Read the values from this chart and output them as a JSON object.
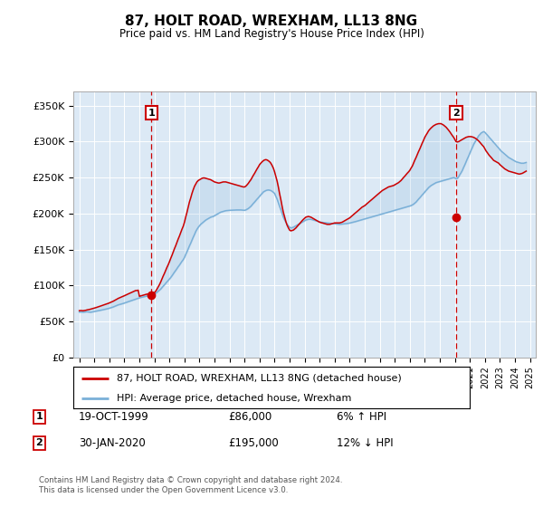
{
  "title": "87, HOLT ROAD, WREXHAM, LL13 8NG",
  "subtitle": "Price paid vs. HM Land Registry's House Price Index (HPI)",
  "ylabel_ticks": [
    "£0",
    "£50K",
    "£100K",
    "£150K",
    "£200K",
    "£250K",
    "£300K",
    "£350K"
  ],
  "ytick_values": [
    0,
    50000,
    100000,
    150000,
    200000,
    250000,
    300000,
    350000
  ],
  "ylim": [
    0,
    370000
  ],
  "xlim_start": 1994.6,
  "xlim_end": 2025.4,
  "background_color": "#dce9f5",
  "red_line_color": "#cc0000",
  "blue_line_color": "#7ab0d8",
  "marker1_x": 1999.8,
  "marker1_price": 86000,
  "marker2_x": 2020.08,
  "marker2_price": 195000,
  "legend_line1": "87, HOLT ROAD, WREXHAM, LL13 8NG (detached house)",
  "legend_line2": "HPI: Average price, detached house, Wrexham",
  "footer": "Contains HM Land Registry data © Crown copyright and database right 2024.\nThis data is licensed under the Open Government Licence v3.0.",
  "table_rows": [
    {
      "num": "1",
      "date": "19-OCT-1999",
      "price": "£86,000",
      "hpi": "6% ↑ HPI"
    },
    {
      "num": "2",
      "date": "30-JAN-2020",
      "price": "£195,000",
      "hpi": "12% ↓ HPI"
    }
  ],
  "hpi_data_x": [
    1995.0,
    1995.08,
    1995.17,
    1995.25,
    1995.33,
    1995.42,
    1995.5,
    1995.58,
    1995.67,
    1995.75,
    1995.83,
    1995.92,
    1996.0,
    1996.08,
    1996.17,
    1996.25,
    1996.33,
    1996.42,
    1996.5,
    1996.58,
    1996.67,
    1996.75,
    1996.83,
    1996.92,
    1997.0,
    1997.08,
    1997.17,
    1997.25,
    1997.33,
    1997.42,
    1997.5,
    1997.58,
    1997.67,
    1997.75,
    1997.83,
    1997.92,
    1998.0,
    1998.08,
    1998.17,
    1998.25,
    1998.33,
    1998.42,
    1998.5,
    1998.58,
    1998.67,
    1998.75,
    1998.83,
    1998.92,
    1999.0,
    1999.08,
    1999.17,
    1999.25,
    1999.33,
    1999.42,
    1999.5,
    1999.58,
    1999.67,
    1999.75,
    1999.83,
    1999.92,
    2000.0,
    2000.08,
    2000.17,
    2000.25,
    2000.33,
    2000.42,
    2000.5,
    2000.58,
    2000.67,
    2000.75,
    2000.83,
    2000.92,
    2001.0,
    2001.08,
    2001.17,
    2001.25,
    2001.33,
    2001.42,
    2001.5,
    2001.58,
    2001.67,
    2001.75,
    2001.83,
    2001.92,
    2002.0,
    2002.08,
    2002.17,
    2002.25,
    2002.33,
    2002.42,
    2002.5,
    2002.58,
    2002.67,
    2002.75,
    2002.83,
    2002.92,
    2003.0,
    2003.08,
    2003.17,
    2003.25,
    2003.33,
    2003.42,
    2003.5,
    2003.58,
    2003.67,
    2003.75,
    2003.83,
    2003.92,
    2004.0,
    2004.08,
    2004.17,
    2004.25,
    2004.33,
    2004.42,
    2004.5,
    2004.58,
    2004.67,
    2004.75,
    2004.83,
    2004.92,
    2005.0,
    2005.08,
    2005.17,
    2005.25,
    2005.33,
    2005.42,
    2005.5,
    2005.58,
    2005.67,
    2005.75,
    2005.83,
    2005.92,
    2006.0,
    2006.08,
    2006.17,
    2006.25,
    2006.33,
    2006.42,
    2006.5,
    2006.58,
    2006.67,
    2006.75,
    2006.83,
    2006.92,
    2007.0,
    2007.08,
    2007.17,
    2007.25,
    2007.33,
    2007.42,
    2007.5,
    2007.58,
    2007.67,
    2007.75,
    2007.83,
    2007.92,
    2008.0,
    2008.08,
    2008.17,
    2008.25,
    2008.33,
    2008.42,
    2008.5,
    2008.58,
    2008.67,
    2008.75,
    2008.83,
    2008.92,
    2009.0,
    2009.08,
    2009.17,
    2009.25,
    2009.33,
    2009.42,
    2009.5,
    2009.58,
    2009.67,
    2009.75,
    2009.83,
    2009.92,
    2010.0,
    2010.08,
    2010.17,
    2010.25,
    2010.33,
    2010.42,
    2010.5,
    2010.58,
    2010.67,
    2010.75,
    2010.83,
    2010.92,
    2011.0,
    2011.08,
    2011.17,
    2011.25,
    2011.33,
    2011.42,
    2011.5,
    2011.58,
    2011.67,
    2011.75,
    2011.83,
    2011.92,
    2012.0,
    2012.08,
    2012.17,
    2012.25,
    2012.33,
    2012.42,
    2012.5,
    2012.58,
    2012.67,
    2012.75,
    2012.83,
    2012.92,
    2013.0,
    2013.08,
    2013.17,
    2013.25,
    2013.33,
    2013.42,
    2013.5,
    2013.58,
    2013.67,
    2013.75,
    2013.83,
    2013.92,
    2014.0,
    2014.08,
    2014.17,
    2014.25,
    2014.33,
    2014.42,
    2014.5,
    2014.58,
    2014.67,
    2014.75,
    2014.83,
    2014.92,
    2015.0,
    2015.08,
    2015.17,
    2015.25,
    2015.33,
    2015.42,
    2015.5,
    2015.58,
    2015.67,
    2015.75,
    2015.83,
    2015.92,
    2016.0,
    2016.08,
    2016.17,
    2016.25,
    2016.33,
    2016.42,
    2016.5,
    2016.58,
    2016.67,
    2016.75,
    2016.83,
    2016.92,
    2017.0,
    2017.08,
    2017.17,
    2017.25,
    2017.33,
    2017.42,
    2017.5,
    2017.58,
    2017.67,
    2017.75,
    2017.83,
    2017.92,
    2018.0,
    2018.08,
    2018.17,
    2018.25,
    2018.33,
    2018.42,
    2018.5,
    2018.58,
    2018.67,
    2018.75,
    2018.83,
    2018.92,
    2019.0,
    2019.08,
    2019.17,
    2019.25,
    2019.33,
    2019.42,
    2019.5,
    2019.58,
    2019.67,
    2019.75,
    2019.83,
    2019.92,
    2020.0,
    2020.08,
    2020.17,
    2020.25,
    2020.33,
    2020.42,
    2020.5,
    2020.58,
    2020.67,
    2020.75,
    2020.83,
    2020.92,
    2021.0,
    2021.08,
    2021.17,
    2021.25,
    2021.33,
    2021.42,
    2021.5,
    2021.58,
    2021.67,
    2021.75,
    2021.83,
    2021.92,
    2022.0,
    2022.08,
    2022.17,
    2022.25,
    2022.33,
    2022.42,
    2022.5,
    2022.58,
    2022.67,
    2022.75,
    2022.83,
    2022.92,
    2023.0,
    2023.08,
    2023.17,
    2023.25,
    2023.33,
    2023.42,
    2023.5,
    2023.58,
    2023.67,
    2023.75,
    2023.83,
    2023.92,
    2024.0,
    2024.08,
    2024.17,
    2024.25,
    2024.33,
    2024.42,
    2024.5,
    2024.58,
    2024.67,
    2024.75
  ],
  "hpi_data_y": [
    63000,
    63200,
    63100,
    62800,
    63000,
    63300,
    63500,
    63200,
    63000,
    62800,
    63100,
    63400,
    63800,
    64200,
    64500,
    64900,
    65200,
    65600,
    66000,
    66300,
    66700,
    67100,
    67500,
    67900,
    68400,
    68900,
    69500,
    70100,
    70800,
    71500,
    72200,
    73000,
    73500,
    74000,
    74500,
    75000,
    75600,
    76200,
    76800,
    77400,
    78000,
    78600,
    79200,
    79800,
    80400,
    81000,
    81600,
    82200,
    82800,
    83300,
    83700,
    84100,
    84500,
    84900,
    85300,
    85700,
    86100,
    86500,
    86900,
    87300,
    88000,
    89000,
    90500,
    92000,
    93500,
    95000,
    97000,
    99000,
    101000,
    103000,
    105000,
    107000,
    109000,
    111000,
    113500,
    116000,
    118500,
    121000,
    123500,
    126000,
    128500,
    131000,
    133500,
    136000,
    139000,
    143000,
    147000,
    151000,
    155000,
    159000,
    163000,
    167000,
    171000,
    175000,
    178000,
    181000,
    183000,
    185000,
    186500,
    188000,
    189500,
    191000,
    192000,
    193000,
    194000,
    195000,
    195500,
    196000,
    197000,
    198000,
    199000,
    200000,
    201000,
    202000,
    202500,
    203000,
    203500,
    204000,
    204200,
    204400,
    204500,
    204600,
    204700,
    204800,
    204900,
    205000,
    205000,
    205000,
    205000,
    205000,
    204800,
    204600,
    204500,
    205000,
    206000,
    207000,
    208500,
    210000,
    212000,
    214000,
    216000,
    218000,
    220000,
    222000,
    224000,
    226000,
    228000,
    230000,
    231000,
    232000,
    232500,
    232800,
    232500,
    232000,
    231000,
    229500,
    228000,
    224000,
    220000,
    215000,
    210000,
    205000,
    200000,
    195000,
    191000,
    188000,
    185000,
    183000,
    181000,
    180000,
    180500,
    181000,
    182000,
    183000,
    184000,
    185000,
    186000,
    187000,
    188000,
    189000,
    190000,
    191000,
    191500,
    192000,
    192000,
    192000,
    191500,
    191000,
    190500,
    190000,
    189500,
    189000,
    188500,
    188000,
    187800,
    187600,
    187400,
    187200,
    187000,
    186800,
    186600,
    186400,
    186200,
    186000,
    185800,
    185600,
    185400,
    185200,
    185000,
    185200,
    185400,
    185600,
    185800,
    186000,
    186200,
    186500,
    186800,
    187200,
    187600,
    188000,
    188500,
    189000,
    189500,
    190000,
    190500,
    191000,
    191500,
    192000,
    192500,
    193000,
    193500,
    194000,
    194500,
    195000,
    195500,
    196000,
    196500,
    197000,
    197500,
    198000,
    198500,
    199000,
    199500,
    200000,
    200500,
    201000,
    201500,
    202000,
    202500,
    203000,
    203500,
    204000,
    204500,
    205000,
    205500,
    206000,
    206500,
    207000,
    207500,
    208000,
    208500,
    209000,
    209500,
    210000,
    210500,
    211000,
    212000,
    213000,
    214500,
    216000,
    218000,
    220000,
    222000,
    224000,
    226000,
    228000,
    230000,
    232000,
    234000,
    236000,
    237500,
    239000,
    240000,
    241000,
    242000,
    243000,
    243500,
    244000,
    244500,
    245000,
    245500,
    246000,
    246500,
    247000,
    247500,
    248000,
    248500,
    249000,
    249500,
    250000,
    249500,
    248000,
    249000,
    251000,
    254000,
    257000,
    260000,
    264000,
    268000,
    272000,
    276000,
    280000,
    284000,
    288000,
    292000,
    296000,
    299000,
    302000,
    305000,
    308000,
    310000,
    312000,
    313000,
    314000,
    313000,
    311000,
    309000,
    307000,
    305000,
    303000,
    301000,
    299000,
    297000,
    295000,
    293000,
    291000,
    289000,
    287000,
    285500,
    284000,
    282500,
    281000,
    279500,
    278000,
    277000,
    276000,
    275000,
    274000,
    273000,
    272000,
    271500,
    271000,
    270500,
    270000,
    270000,
    270000,
    270500,
    271000
  ],
  "price_data_x": [
    1995.0,
    1995.08,
    1995.17,
    1995.25,
    1995.33,
    1995.42,
    1995.5,
    1995.58,
    1995.67,
    1995.75,
    1995.83,
    1995.92,
    1996.0,
    1996.08,
    1996.17,
    1996.25,
    1996.33,
    1996.42,
    1996.5,
    1996.58,
    1996.67,
    1996.75,
    1996.83,
    1996.92,
    1997.0,
    1997.08,
    1997.17,
    1997.25,
    1997.33,
    1997.42,
    1997.5,
    1997.58,
    1997.67,
    1997.75,
    1997.83,
    1997.92,
    1998.0,
    1998.08,
    1998.17,
    1998.25,
    1998.33,
    1998.42,
    1998.5,
    1998.58,
    1998.67,
    1998.75,
    1998.83,
    1998.92,
    1999.0,
    1999.08,
    1999.17,
    1999.25,
    1999.33,
    1999.42,
    1999.5,
    1999.58,
    1999.67,
    1999.75,
    1999.83,
    1999.92,
    2000.0,
    2000.08,
    2000.17,
    2000.25,
    2000.33,
    2000.42,
    2000.5,
    2000.58,
    2000.67,
    2000.75,
    2000.83,
    2000.92,
    2001.0,
    2001.08,
    2001.17,
    2001.25,
    2001.33,
    2001.42,
    2001.5,
    2001.58,
    2001.67,
    2001.75,
    2001.83,
    2001.92,
    2002.0,
    2002.08,
    2002.17,
    2002.25,
    2002.33,
    2002.42,
    2002.5,
    2002.58,
    2002.67,
    2002.75,
    2002.83,
    2002.92,
    2003.0,
    2003.08,
    2003.17,
    2003.25,
    2003.33,
    2003.42,
    2003.5,
    2003.58,
    2003.67,
    2003.75,
    2003.83,
    2003.92,
    2004.0,
    2004.08,
    2004.17,
    2004.25,
    2004.33,
    2004.42,
    2004.5,
    2004.58,
    2004.67,
    2004.75,
    2004.83,
    2004.92,
    2005.0,
    2005.08,
    2005.17,
    2005.25,
    2005.33,
    2005.42,
    2005.5,
    2005.58,
    2005.67,
    2005.75,
    2005.83,
    2005.92,
    2006.0,
    2006.08,
    2006.17,
    2006.25,
    2006.33,
    2006.42,
    2006.5,
    2006.58,
    2006.67,
    2006.75,
    2006.83,
    2006.92,
    2007.0,
    2007.08,
    2007.17,
    2007.25,
    2007.33,
    2007.42,
    2007.5,
    2007.58,
    2007.67,
    2007.75,
    2007.83,
    2007.92,
    2008.0,
    2008.08,
    2008.17,
    2008.25,
    2008.33,
    2008.42,
    2008.5,
    2008.58,
    2008.67,
    2008.75,
    2008.83,
    2008.92,
    2009.0,
    2009.08,
    2009.17,
    2009.25,
    2009.33,
    2009.42,
    2009.5,
    2009.58,
    2009.67,
    2009.75,
    2009.83,
    2009.92,
    2010.0,
    2010.08,
    2010.17,
    2010.25,
    2010.33,
    2010.42,
    2010.5,
    2010.58,
    2010.67,
    2010.75,
    2010.83,
    2010.92,
    2011.0,
    2011.08,
    2011.17,
    2011.25,
    2011.33,
    2011.42,
    2011.5,
    2011.58,
    2011.67,
    2011.75,
    2011.83,
    2011.92,
    2012.0,
    2012.08,
    2012.17,
    2012.25,
    2012.33,
    2012.42,
    2012.5,
    2012.58,
    2012.67,
    2012.75,
    2012.83,
    2012.92,
    2013.0,
    2013.08,
    2013.17,
    2013.25,
    2013.33,
    2013.42,
    2013.5,
    2013.58,
    2013.67,
    2013.75,
    2013.83,
    2013.92,
    2014.0,
    2014.08,
    2014.17,
    2014.25,
    2014.33,
    2014.42,
    2014.5,
    2014.58,
    2014.67,
    2014.75,
    2014.83,
    2014.92,
    2015.0,
    2015.08,
    2015.17,
    2015.25,
    2015.33,
    2015.42,
    2015.5,
    2015.58,
    2015.67,
    2015.75,
    2015.83,
    2015.92,
    2016.0,
    2016.08,
    2016.17,
    2016.25,
    2016.33,
    2016.42,
    2016.5,
    2016.58,
    2016.67,
    2016.75,
    2016.83,
    2016.92,
    2017.0,
    2017.08,
    2017.17,
    2017.25,
    2017.33,
    2017.42,
    2017.5,
    2017.58,
    2017.67,
    2017.75,
    2017.83,
    2017.92,
    2018.0,
    2018.08,
    2018.17,
    2018.25,
    2018.33,
    2018.42,
    2018.5,
    2018.58,
    2018.67,
    2018.75,
    2018.83,
    2018.92,
    2019.0,
    2019.08,
    2019.17,
    2019.25,
    2019.33,
    2019.42,
    2019.5,
    2019.58,
    2019.67,
    2019.75,
    2019.83,
    2019.92,
    2020.0,
    2020.08,
    2020.17,
    2020.25,
    2020.33,
    2020.42,
    2020.5,
    2020.58,
    2020.67,
    2020.75,
    2020.83,
    2020.92,
    2021.0,
    2021.08,
    2021.17,
    2021.25,
    2021.33,
    2021.42,
    2021.5,
    2021.58,
    2021.67,
    2021.75,
    2021.83,
    2021.92,
    2022.0,
    2022.08,
    2022.17,
    2022.25,
    2022.33,
    2022.42,
    2022.5,
    2022.58,
    2022.67,
    2022.75,
    2022.83,
    2022.92,
    2023.0,
    2023.08,
    2023.17,
    2023.25,
    2023.33,
    2023.42,
    2023.5,
    2023.58,
    2023.67,
    2023.75,
    2023.83,
    2023.92,
    2024.0,
    2024.08,
    2024.17,
    2024.25,
    2024.33,
    2024.42,
    2024.5,
    2024.58,
    2024.67,
    2024.75
  ],
  "price_data_y": [
    65000,
    65200,
    65100,
    64900,
    65200,
    65500,
    66000,
    66300,
    66700,
    67100,
    67600,
    68100,
    68600,
    69100,
    69700,
    70300,
    70900,
    71500,
    72100,
    72700,
    73300,
    73900,
    74500,
    75100,
    75800,
    76500,
    77300,
    78100,
    79000,
    80000,
    81000,
    82000,
    82800,
    83600,
    84300,
    85000,
    85800,
    86600,
    87400,
    88200,
    89000,
    89800,
    90600,
    91400,
    92200,
    93000,
    93000,
    93500,
    85000,
    85500,
    86000,
    86500,
    87000,
    87500,
    88000,
    88000,
    87500,
    86000,
    87000,
    88000,
    90000,
    92000,
    95000,
    98000,
    101000,
    105000,
    109000,
    113000,
    117000,
    121000,
    125000,
    129000,
    133000,
    137500,
    142000,
    146500,
    151000,
    155500,
    160000,
    164500,
    169000,
    173500,
    178000,
    182500,
    188000,
    195000,
    202000,
    209000,
    216000,
    222000,
    228000,
    233000,
    238000,
    241000,
    244000,
    246000,
    247000,
    248000,
    249000,
    249500,
    249500,
    249000,
    248500,
    248000,
    247500,
    247000,
    246000,
    245000,
    244000,
    243500,
    243000,
    242500,
    242500,
    243000,
    243500,
    244000,
    244000,
    244000,
    243500,
    243000,
    242500,
    242000,
    241500,
    241000,
    240500,
    240000,
    239500,
    239000,
    238500,
    238000,
    237500,
    237000,
    237000,
    238000,
    240000,
    242000,
    244500,
    247000,
    250000,
    253000,
    256000,
    259000,
    262000,
    265000,
    268000,
    270000,
    272000,
    273500,
    274500,
    275000,
    274500,
    273500,
    272000,
    270000,
    267000,
    263000,
    258000,
    252000,
    245000,
    237000,
    228000,
    219000,
    210000,
    202000,
    195000,
    189000,
    184000,
    180000,
    177000,
    176000,
    176500,
    177000,
    178500,
    180000,
    182000,
    184000,
    186000,
    188000,
    190000,
    192000,
    193500,
    195000,
    195500,
    196000,
    195500,
    195000,
    194000,
    193000,
    192000,
    191000,
    190000,
    189000,
    188000,
    187500,
    187000,
    186500,
    186000,
    185500,
    185000,
    185000,
    185000,
    185500,
    186000,
    186500,
    187000,
    187000,
    187000,
    187000,
    187000,
    187500,
    188000,
    189000,
    190000,
    191000,
    192000,
    193000,
    194000,
    195500,
    197000,
    198500,
    200000,
    201500,
    203000,
    204500,
    206000,
    207500,
    209000,
    210000,
    211000,
    212500,
    214000,
    215500,
    217000,
    218500,
    220000,
    221500,
    223000,
    224500,
    226000,
    227500,
    229000,
    230500,
    232000,
    233000,
    234000,
    235000,
    236000,
    237000,
    237500,
    238000,
    238500,
    239000,
    240000,
    241000,
    242000,
    243000,
    244500,
    246000,
    248000,
    250000,
    252000,
    254000,
    256000,
    258000,
    260000,
    263000,
    266000,
    270000,
    274000,
    278000,
    282000,
    286000,
    290000,
    294000,
    298000,
    302000,
    306000,
    309000,
    312000,
    315000,
    317000,
    319000,
    320500,
    322000,
    323000,
    324000,
    324500,
    325000,
    325000,
    325000,
    324000,
    323000,
    321500,
    320000,
    318000,
    316000,
    313500,
    311000,
    308500,
    306000,
    303000,
    300000,
    299500,
    300000,
    301000,
    302000,
    303000,
    304000,
    305000,
    306000,
    306500,
    307000,
    307000,
    307000,
    306500,
    306000,
    305000,
    304000,
    302500,
    301000,
    299000,
    297000,
    295000,
    293000,
    290000,
    287000,
    284500,
    282000,
    280000,
    278000,
    276000,
    274000,
    273000,
    272000,
    271000,
    270000,
    268000,
    266500,
    265000,
    263500,
    262000,
    261000,
    260000,
    259000,
    258500,
    258000,
    257500,
    257000,
    256500,
    256000,
    255500,
    255000,
    255000,
    255500,
    256000,
    257000,
    258000,
    259000
  ]
}
